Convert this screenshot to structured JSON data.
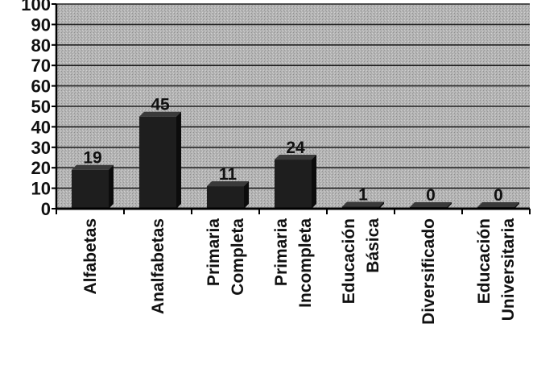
{
  "chart_data": {
    "type": "bar",
    "categories": [
      [
        "Alfabetas"
      ],
      [
        "Analfabetas"
      ],
      [
        "Primaria",
        "Completa"
      ],
      [
        "Primaria",
        "Incompleta"
      ],
      [
        "Educación",
        "Básica"
      ],
      [
        "Diversificado"
      ],
      [
        "Educación",
        "Universitaria"
      ]
    ],
    "values": [
      19,
      45,
      11,
      24,
      1,
      0,
      0
    ],
    "data_labels": [
      "19",
      "45",
      "11",
      "24",
      "1",
      "0",
      "0"
    ],
    "ylim": [
      0,
      100
    ],
    "yticks": [
      0,
      10,
      20,
      30,
      40,
      50,
      60,
      70,
      80,
      90,
      100
    ],
    "grid": true,
    "legend": "none",
    "colors": {
      "plot_background": "#b4b4b4",
      "bar_fill": "#1e1e1e",
      "gridline": "#222222",
      "axis": "#000000",
      "text": "#111111"
    }
  }
}
